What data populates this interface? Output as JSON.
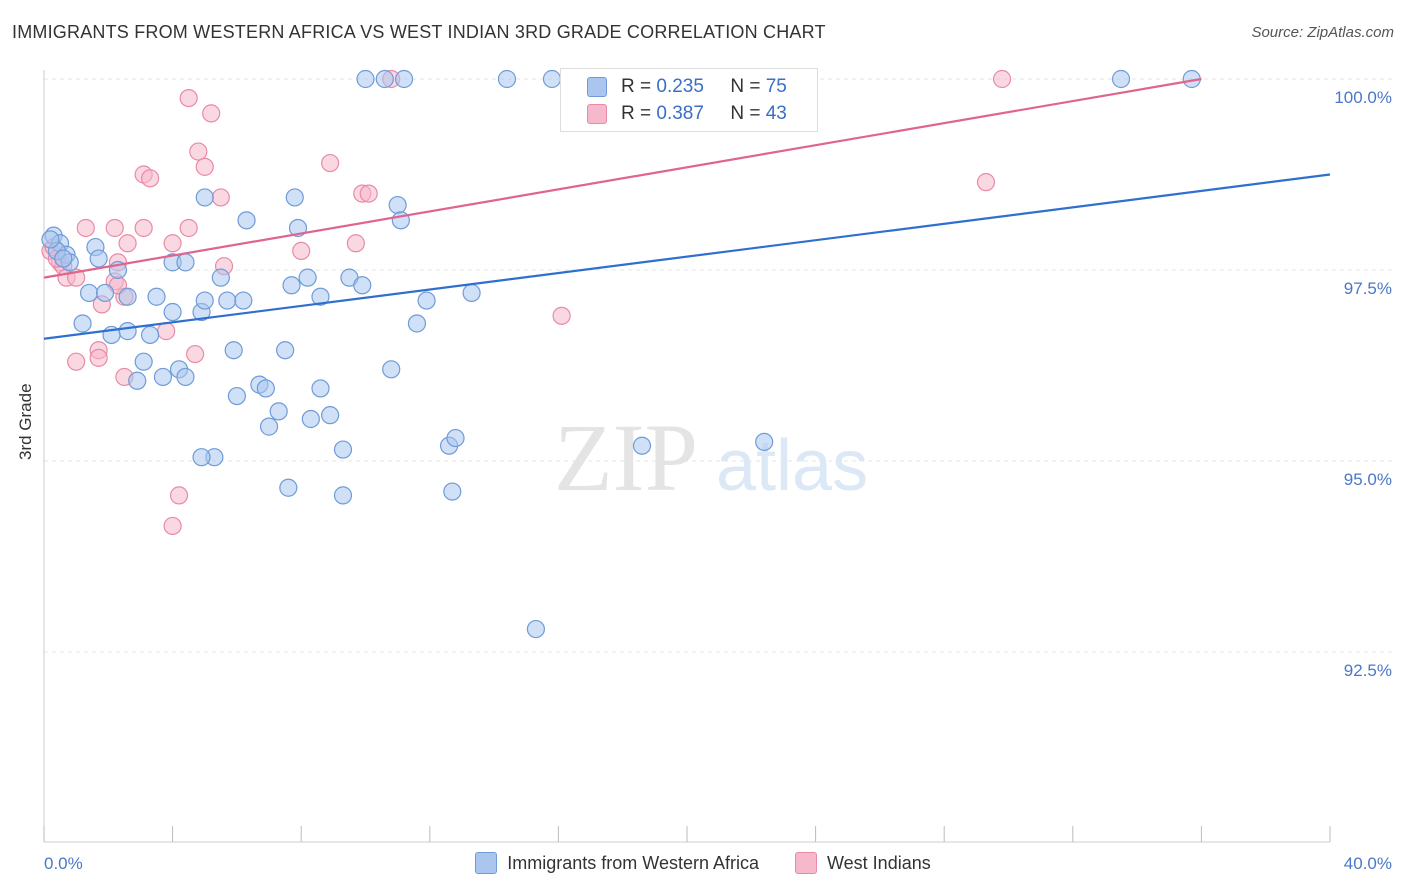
{
  "title": "IMMIGRANTS FROM WESTERN AFRICA VS WEST INDIAN 3RD GRADE CORRELATION CHART",
  "source": "Source: ZipAtlas.com",
  "watermark": {
    "zip": "ZIP",
    "atlas": "atlas"
  },
  "legend_stats": {
    "r_label": "R =",
    "n_label": "N =",
    "blue": {
      "r": "0.235",
      "n": "75"
    },
    "pink": {
      "r": "0.387",
      "n": "43"
    }
  },
  "legend_bottom": {
    "blue": "Immigrants from Western Africa",
    "pink": "West Indians"
  },
  "colors": {
    "blue_fill": "#aac6ee",
    "blue_stroke": "#6f9bd8",
    "blue_line": "#2f6fcf",
    "pink_fill": "#f6b8cb",
    "pink_stroke": "#e98aa8",
    "pink_line": "#e0648f",
    "tick_text": "#4a78c8"
  },
  "chart_data": {
    "type": "scatter",
    "title": "IMMIGRANTS FROM WESTERN AFRICA VS WEST INDIAN 3RD GRADE CORRELATION CHART",
    "xlabel": "",
    "ylabel": "3rd Grade",
    "xlim": [
      0,
      40
    ],
    "ylim": [
      90.0,
      100.2
    ],
    "x_tick_labels": [
      "0.0%",
      "40.0%"
    ],
    "y_ticks": [
      92.5,
      95.0,
      97.5,
      100.0
    ],
    "y_tick_labels": [
      "92.5%",
      "95.0%",
      "97.5%",
      "100.0%"
    ],
    "grid": true,
    "series": [
      {
        "name": "Immigrants from Western Africa",
        "color": "#6f9bd8",
        "trend": {
          "x": [
            0,
            40
          ],
          "y": [
            96.6,
            98.75
          ]
        },
        "points": [
          [
            0.3,
            97.95
          ],
          [
            0.5,
            97.85
          ],
          [
            0.7,
            97.7
          ],
          [
            0.4,
            97.75
          ],
          [
            0.8,
            97.6
          ],
          [
            1.6,
            97.8
          ],
          [
            1.7,
            97.65
          ],
          [
            2.3,
            97.5
          ],
          [
            1.4,
            97.2
          ],
          [
            1.9,
            97.2
          ],
          [
            2.6,
            97.15
          ],
          [
            3.5,
            97.15
          ],
          [
            4.0,
            96.95
          ],
          [
            4.9,
            96.95
          ],
          [
            4.0,
            97.6
          ],
          [
            4.4,
            97.6
          ],
          [
            1.2,
            96.8
          ],
          [
            2.6,
            96.7
          ],
          [
            2.1,
            96.65
          ],
          [
            3.3,
            96.65
          ],
          [
            3.1,
            96.3
          ],
          [
            4.2,
            96.2
          ],
          [
            4.4,
            96.1
          ],
          [
            3.7,
            96.1
          ],
          [
            2.9,
            96.05
          ],
          [
            5.0,
            98.45
          ],
          [
            5.5,
            97.4
          ],
          [
            5.0,
            97.1
          ],
          [
            5.7,
            97.1
          ],
          [
            6.2,
            97.1
          ],
          [
            6.3,
            98.15
          ],
          [
            5.9,
            96.45
          ],
          [
            6.7,
            96.0
          ],
          [
            6.9,
            95.95
          ],
          [
            6.0,
            95.85
          ],
          [
            7.0,
            95.45
          ],
          [
            7.3,
            95.65
          ],
          [
            7.5,
            96.45
          ],
          [
            7.7,
            97.3
          ],
          [
            7.8,
            98.45
          ],
          [
            7.9,
            98.05
          ],
          [
            8.2,
            97.4
          ],
          [
            8.6,
            97.15
          ],
          [
            8.6,
            95.95
          ],
          [
            8.3,
            95.55
          ],
          [
            8.9,
            95.6
          ],
          [
            9.3,
            95.15
          ],
          [
            9.5,
            97.4
          ],
          [
            9.9,
            97.3
          ],
          [
            11.0,
            98.35
          ],
          [
            11.1,
            98.15
          ],
          [
            10.8,
            96.2
          ],
          [
            11.6,
            96.8
          ],
          [
            11.9,
            97.1
          ],
          [
            13.3,
            97.2
          ],
          [
            12.6,
            95.2
          ],
          [
            12.8,
            95.3
          ],
          [
            12.7,
            94.6
          ],
          [
            7.6,
            94.65
          ],
          [
            5.3,
            95.05
          ],
          [
            4.9,
            95.05
          ],
          [
            9.3,
            94.55
          ],
          [
            15.3,
            92.8
          ],
          [
            18.6,
            95.2
          ],
          [
            22.4,
            95.25
          ],
          [
            11.2,
            100.0
          ],
          [
            10.0,
            100.0
          ],
          [
            10.6,
            100.0
          ],
          [
            14.4,
            100.0
          ],
          [
            15.8,
            100.0
          ],
          [
            16.5,
            100.0
          ],
          [
            33.5,
            100.0
          ],
          [
            35.7,
            100.0
          ],
          [
            0.2,
            97.9
          ],
          [
            0.6,
            97.65
          ]
        ]
      },
      {
        "name": "West Indians",
        "color": "#e98aa8",
        "trend": {
          "x": [
            0,
            36
          ],
          "y": [
            97.4,
            100.0
          ]
        },
        "points": [
          [
            0.2,
            97.75
          ],
          [
            0.3,
            97.8
          ],
          [
            0.5,
            97.6
          ],
          [
            0.6,
            97.55
          ],
          [
            0.7,
            97.4
          ],
          [
            1.0,
            97.4
          ],
          [
            2.2,
            98.05
          ],
          [
            2.6,
            97.85
          ],
          [
            2.3,
            97.6
          ],
          [
            2.2,
            97.35
          ],
          [
            2.5,
            97.15
          ],
          [
            1.8,
            97.05
          ],
          [
            3.1,
            98.05
          ],
          [
            3.1,
            98.75
          ],
          [
            3.3,
            98.7
          ],
          [
            4.0,
            97.85
          ],
          [
            4.5,
            98.05
          ],
          [
            4.5,
            99.75
          ],
          [
            5.2,
            99.55
          ],
          [
            4.8,
            99.05
          ],
          [
            5.0,
            98.85
          ],
          [
            5.5,
            98.45
          ],
          [
            5.6,
            97.55
          ],
          [
            3.8,
            96.7
          ],
          [
            1.7,
            96.45
          ],
          [
            1.7,
            96.35
          ],
          [
            1.0,
            96.3
          ],
          [
            2.5,
            96.1
          ],
          [
            4.7,
            96.4
          ],
          [
            4.2,
            94.55
          ],
          [
            4.0,
            94.15
          ],
          [
            8.9,
            98.9
          ],
          [
            9.9,
            98.5
          ],
          [
            10.1,
            98.5
          ],
          [
            9.7,
            97.85
          ],
          [
            8.0,
            97.75
          ],
          [
            10.8,
            100.0
          ],
          [
            16.1,
            96.9
          ],
          [
            29.8,
            100.0
          ],
          [
            29.3,
            98.65
          ],
          [
            1.3,
            98.05
          ],
          [
            0.4,
            97.65
          ],
          [
            2.3,
            97.3
          ]
        ]
      }
    ]
  }
}
